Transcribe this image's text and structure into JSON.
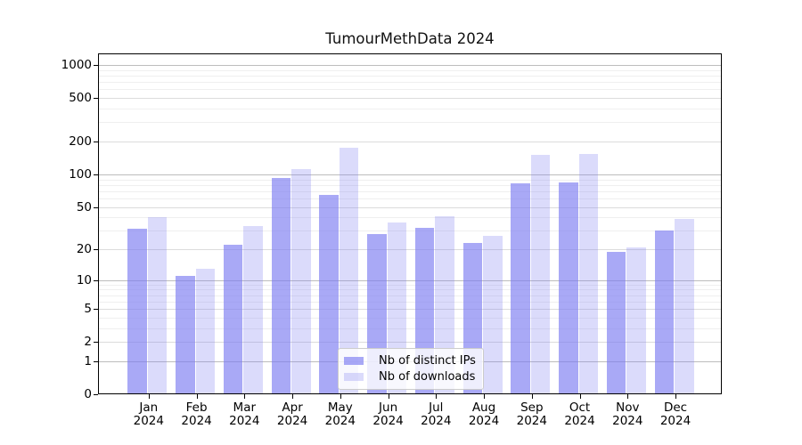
{
  "title": "TumourMethData 2024",
  "chart_data": {
    "type": "bar",
    "title": "TumourMethData 2024",
    "categories": [
      "Jan",
      "Feb",
      "Mar",
      "Apr",
      "May",
      "Jun",
      "Jul",
      "Aug",
      "Sep",
      "Oct",
      "Nov",
      "Dec"
    ],
    "year_label": "2024",
    "series": [
      {
        "name": "Nb of distinct IPs",
        "values": [
          31,
          11,
          22,
          93,
          65,
          28,
          32,
          23,
          82,
          84,
          19,
          30
        ],
        "color": "#7c7cf1",
        "alpha": 0.66
      },
      {
        "name": "Nb of downloads",
        "values": [
          40,
          13,
          33,
          112,
          175,
          36,
          41,
          27,
          150,
          154,
          21,
          39
        ],
        "color": "#7c7cf1",
        "alpha": 0.28
      }
    ],
    "ylabel": "",
    "xlabel": "",
    "y_scale": "log1p",
    "ylim": [
      0,
      1250
    ],
    "y_ticks": [
      0,
      1,
      2,
      5,
      10,
      20,
      50,
      100,
      200,
      500,
      1000
    ],
    "y_gridlines_decade": [
      1,
      10,
      100,
      1000
    ],
    "y_gridlines_major": [
      2,
      5,
      20,
      50,
      200,
      500
    ],
    "y_gridlines_minor": [
      3,
      4,
      6,
      7,
      8,
      9,
      30,
      40,
      60,
      70,
      80,
      90,
      300,
      400,
      600,
      700,
      800,
      900
    ],
    "grid": true,
    "legend_position": "lower center"
  },
  "colors": {
    "bar_base": "#7c7cf1",
    "gridline_decade": "#bdbdbd",
    "gridline_major": "#dcdcdc",
    "gridline_minor": "#efefef",
    "axis": "#000000",
    "legend_border": "#cccccc"
  }
}
